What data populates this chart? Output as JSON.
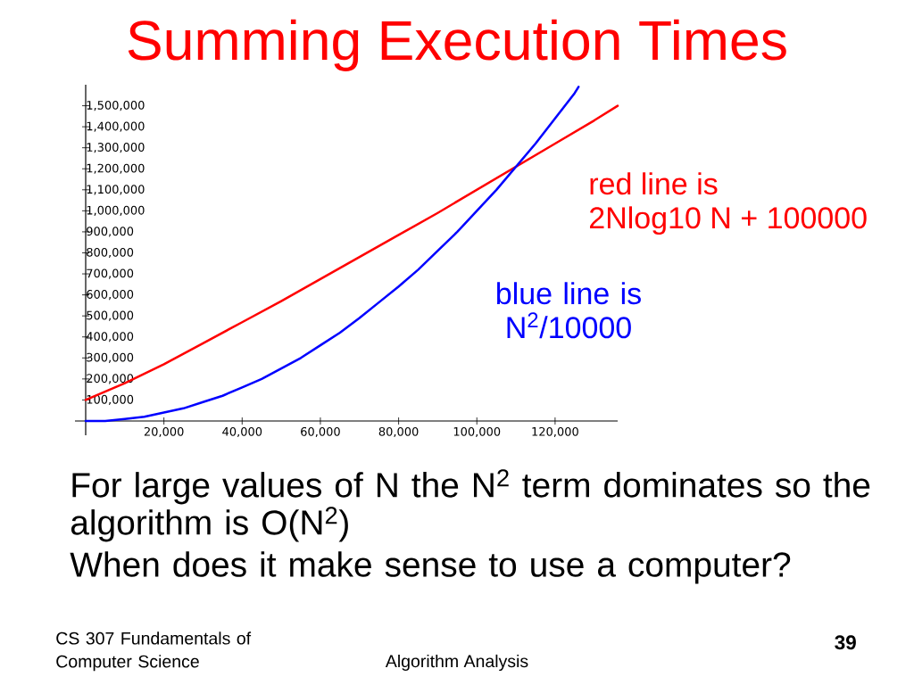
{
  "chart_data": {
    "type": "line",
    "title": "Summing Execution Times",
    "xlim": [
      0,
      136000
    ],
    "ylim": [
      0,
      1600000
    ],
    "xticks": [
      {
        "value": 20000,
        "label": "20,000"
      },
      {
        "value": 40000,
        "label": "40,000"
      },
      {
        "value": 60000,
        "label": "60,000"
      },
      {
        "value": 80000,
        "label": "80,000"
      },
      {
        "value": 100000,
        "label": "100,000"
      },
      {
        "value": 120000,
        "label": "120,000"
      }
    ],
    "yticks": [
      {
        "value": 100000,
        "label": "100,000"
      },
      {
        "value": 200000,
        "label": "200,000"
      },
      {
        "value": 300000,
        "label": "300,000"
      },
      {
        "value": 400000,
        "label": "400,000"
      },
      {
        "value": 500000,
        "label": "500,000"
      },
      {
        "value": 600000,
        "label": "600,000"
      },
      {
        "value": 700000,
        "label": "700,000"
      },
      {
        "value": 800000,
        "label": "800,000"
      },
      {
        "value": 900000,
        "label": "900,000"
      },
      {
        "value": 1000000,
        "label": "1,000,000"
      },
      {
        "value": 1100000,
        "label": "1,100,000"
      },
      {
        "value": 1200000,
        "label": "1,200,000"
      },
      {
        "value": 1300000,
        "label": "1,300,000"
      },
      {
        "value": 1400000,
        "label": "1,400,000"
      },
      {
        "value": 1500000,
        "label": "1,500,000"
      }
    ],
    "series": [
      {
        "name": "red line is 2Nlog10 N + 100000",
        "color": "#ff0000",
        "x": [
          0,
          10000,
          20000,
          30000,
          40000,
          50000,
          60000,
          70000,
          80000,
          90000,
          100000,
          110000,
          120000,
          130000,
          136000
        ],
        "values": [
          100000,
          180000,
          270000,
          370000,
          470000,
          570000,
          675000,
          780000,
          885000,
          990000,
          1100000,
          1210000,
          1320000,
          1430000,
          1500000
        ]
      },
      {
        "name": "blue line is N$^{2}$/10000",
        "color": "#0000ff",
        "x": [
          0,
          5000,
          10000,
          15000,
          20000,
          25000,
          30000,
          35000,
          40000,
          45000,
          50000,
          55000,
          60000,
          65000,
          70000,
          75000,
          80000,
          85000,
          90000,
          95000,
          100000,
          105000,
          110000,
          115000,
          120000,
          125000,
          126000
        ],
        "values": [
          0,
          0,
          10000,
          20000,
          40000,
          60000,
          90000,
          120000,
          160000,
          200000,
          250000,
          300000,
          360000,
          420000,
          490000,
          565000,
          640000,
          720000,
          810000,
          900000,
          1000000,
          1100000,
          1210000,
          1320000,
          1440000,
          1560000,
          1590000
        ]
      }
    ],
    "annotations": [
      "For large values of N the N$^{2}$ term dominates so the algorithm is O(N$^{2}$)",
      "When does it make sense to use a computer?",
      "CS 307 Fundamentals of Computer Science",
      "Algorithm Analysis",
      "39"
    ]
  }
}
